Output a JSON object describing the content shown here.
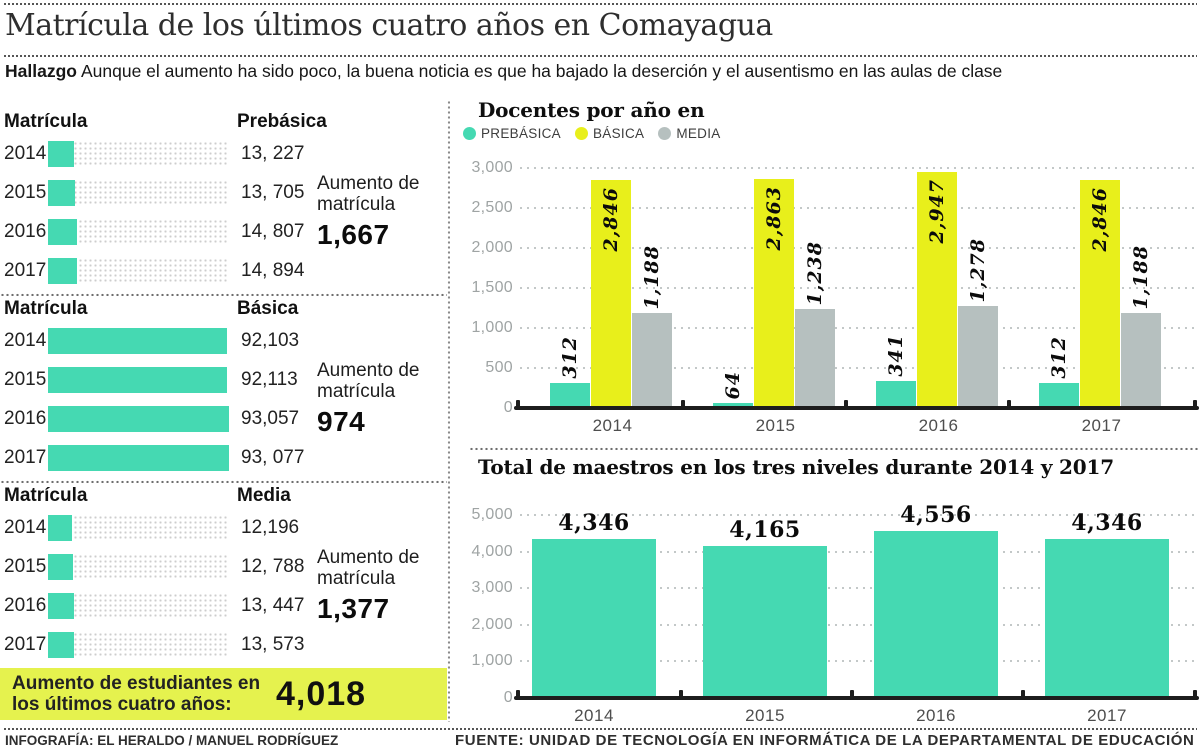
{
  "header": {
    "title": "Matrícula de los últimos cuatro años en Comayagua",
    "finding_label": "Hallazgo",
    "finding_text": "Aunque el aumento ha sido poco, la buena noticia es que ha bajado la deserción y el ausentismo en las aulas de clase"
  },
  "enrollment_max_scale": 93077,
  "enrollment_sections": [
    {
      "column_label": "Matrícula",
      "level": "Prebásica",
      "rows": [
        {
          "year": "2014",
          "value": "13, 227",
          "num": 13227
        },
        {
          "year": "2015",
          "value": "13, 705",
          "num": 13705
        },
        {
          "year": "2016",
          "value": "14, 807",
          "num": 14807
        },
        {
          "year": "2017",
          "value": "14, 894",
          "num": 14894
        }
      ],
      "increase_label": "Aumento de matrícula",
      "increase_value": "1,667"
    },
    {
      "column_label": "Matrícula",
      "level": "Básica",
      "rows": [
        {
          "year": "2014",
          "value": "92,103",
          "num": 92103
        },
        {
          "year": "2015",
          "value": "92,113",
          "num": 92113
        },
        {
          "year": "2016",
          "value": "93,057",
          "num": 93057
        },
        {
          "year": "2017",
          "value": "93, 077",
          "num": 93077
        }
      ],
      "increase_label": "Aumento de matrícula",
      "increase_value": "974"
    },
    {
      "column_label": "Matrícula",
      "level": "Media",
      "rows": [
        {
          "year": "2014",
          "value": "12,196",
          "num": 12196
        },
        {
          "year": "2015",
          "value": "12, 788",
          "num": 12788
        },
        {
          "year": "2016",
          "value": "13, 447",
          "num": 13447
        },
        {
          "year": "2017",
          "value": "13, 573",
          "num": 13573
        }
      ],
      "increase_label": "Aumento de matrícula",
      "increase_value": "1,377"
    }
  ],
  "total_increase": {
    "label": "Aumento de estudiantes en los últimos cuatro años:",
    "value": "4,018",
    "background": "#e5f24e"
  },
  "chart_data": [
    {
      "type": "bar",
      "title": "Docentes por año en",
      "categories": [
        "2014",
        "2015",
        "2016",
        "2017"
      ],
      "series": [
        {
          "name": "PREBÁSICA",
          "color": "#45d9b2",
          "values": [
            312,
            64,
            341,
            312
          ],
          "labels": [
            "312",
            "64",
            "341",
            "312"
          ],
          "label_position": "outside"
        },
        {
          "name": "BÁSICA",
          "color": "#e8ef1b",
          "values": [
            2846,
            2863,
            2947,
            2846
          ],
          "labels": [
            "2,846",
            "2,863",
            "2,947",
            "2,846"
          ],
          "label_position": "inside"
        },
        {
          "name": "MEDIA",
          "color": "#b6c0bf",
          "values": [
            1188,
            1238,
            1278,
            1188
          ],
          "labels": [
            "1,188",
            "1,238",
            "1,278",
            "1,188"
          ],
          "label_position": "outside"
        }
      ],
      "ylim": [
        0,
        3000
      ],
      "yticks": [
        {
          "v": 3000,
          "label": "3,000"
        },
        {
          "v": 2500,
          "label": "2,500"
        },
        {
          "v": 2000,
          "label": "2,000"
        },
        {
          "v": 1500,
          "label": "1,500"
        },
        {
          "v": 1000,
          "label": "1,000"
        },
        {
          "v": 500,
          "label": "500"
        },
        {
          "v": 0,
          "label": "0"
        }
      ],
      "grid": true,
      "legend_position": "top"
    },
    {
      "type": "bar",
      "title": "Total de maestros en los tres niveles durante 2014 y 2017",
      "categories": [
        "2014",
        "2015",
        "2016",
        "2017"
      ],
      "values": [
        4346,
        4165,
        4556,
        4346
      ],
      "labels": [
        "4,346",
        "4,165",
        "4,556",
        "4,346"
      ],
      "bar_color": "#45d9b2",
      "ylim": [
        0,
        5000
      ],
      "yticks": [
        {
          "v": 5000,
          "label": "5,000"
        },
        {
          "v": 4000,
          "label": "4,000"
        },
        {
          "v": 3000,
          "label": "3,000"
        },
        {
          "v": 2000,
          "label": "2,000"
        },
        {
          "v": 1000,
          "label": "1,000"
        },
        {
          "v": 0,
          "label": "0"
        }
      ],
      "grid": true,
      "legend_position": "none"
    }
  ],
  "footer": {
    "credit": "INFOGRAFÍA: EL HERALDO / MANUEL RODRÍGUEZ",
    "source": "FUENTE: UNIDAD DE TECNOLOGÍA EN INFORMÁTICA DE LA DEPARTAMENTAL DE EDUCACIÓN"
  }
}
